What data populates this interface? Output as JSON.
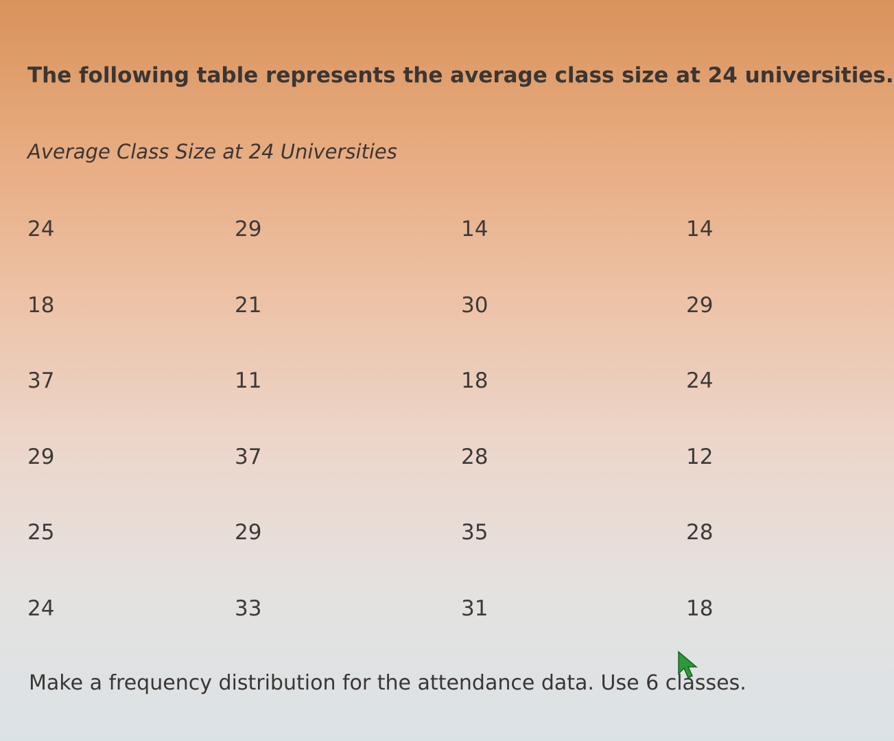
{
  "intro": "The following table represents the average class size at 24 universities.",
  "table": {
    "caption": "Average Class Size at 24 Universities",
    "rows": [
      [
        24,
        29,
        14,
        14
      ],
      [
        18,
        21,
        30,
        29
      ],
      [
        37,
        11,
        18,
        24
      ],
      [
        29,
        37,
        28,
        12
      ],
      [
        25,
        29,
        35,
        28
      ],
      [
        24,
        33,
        31,
        18
      ]
    ]
  },
  "instruction": "Make a frequency distribution for the attendance data. Use 6 classes."
}
